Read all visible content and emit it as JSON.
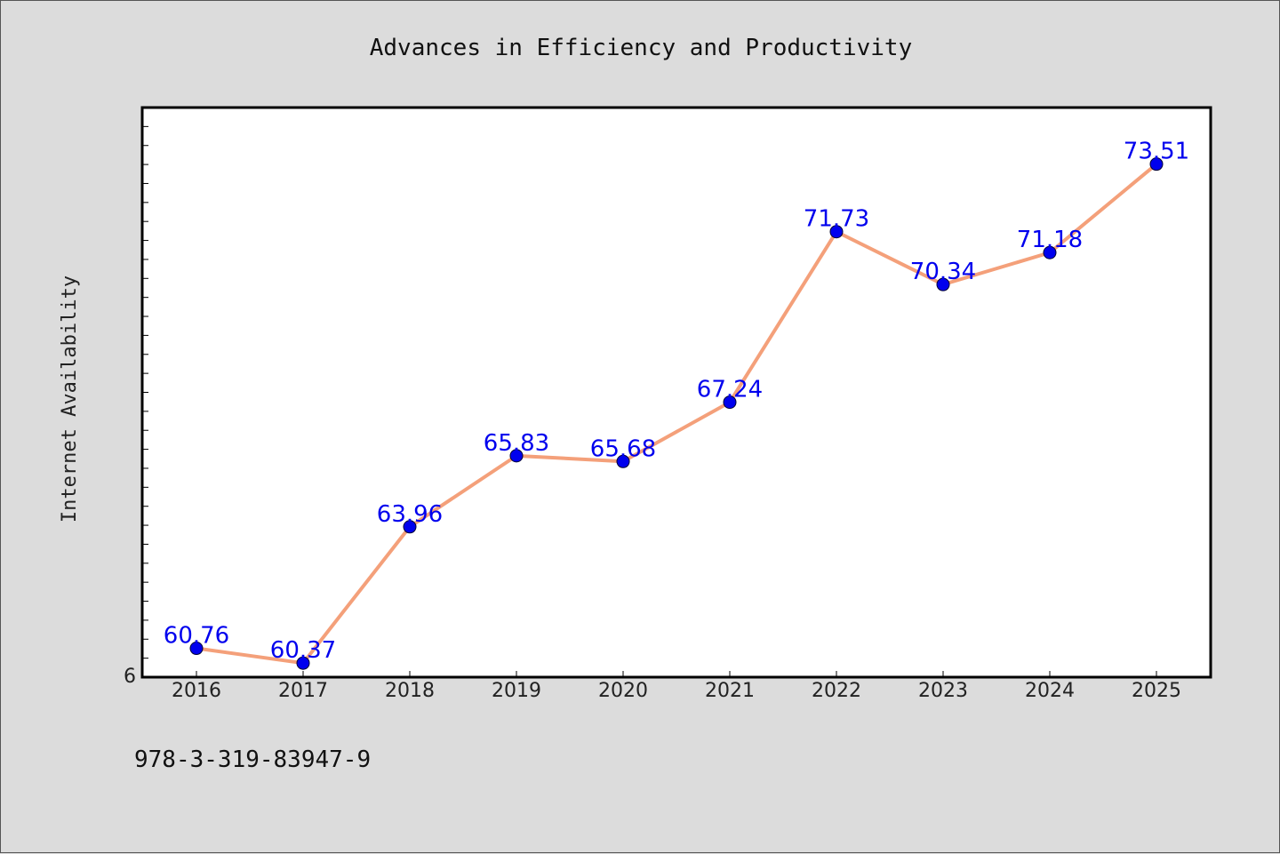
{
  "chart_data": {
    "type": "line",
    "title": "Advances in Efficiency and Productivity",
    "ylabel": "Internet Availability",
    "xlabel": "",
    "categories": [
      "2016",
      "2017",
      "2018",
      "2019",
      "2020",
      "2021",
      "2022",
      "2023",
      "2024",
      "2025"
    ],
    "series": [
      {
        "values": [
          60.76,
          60.37,
          63.96,
          65.83,
          65.68,
          67.24,
          71.73,
          70.34,
          71.18,
          73.51
        ],
        "line_color": "#f4a07a",
        "marker_color": "#0000ee",
        "label_color": "#0000ee"
      }
    ],
    "ylim": [
      60,
      75
    ],
    "y_tick_labels": [
      "6"
    ],
    "grid": false,
    "background": "#dcdcdc",
    "plot_background": "#ffffff"
  },
  "footer": {
    "isbn": "978-3-319-83947-9"
  }
}
